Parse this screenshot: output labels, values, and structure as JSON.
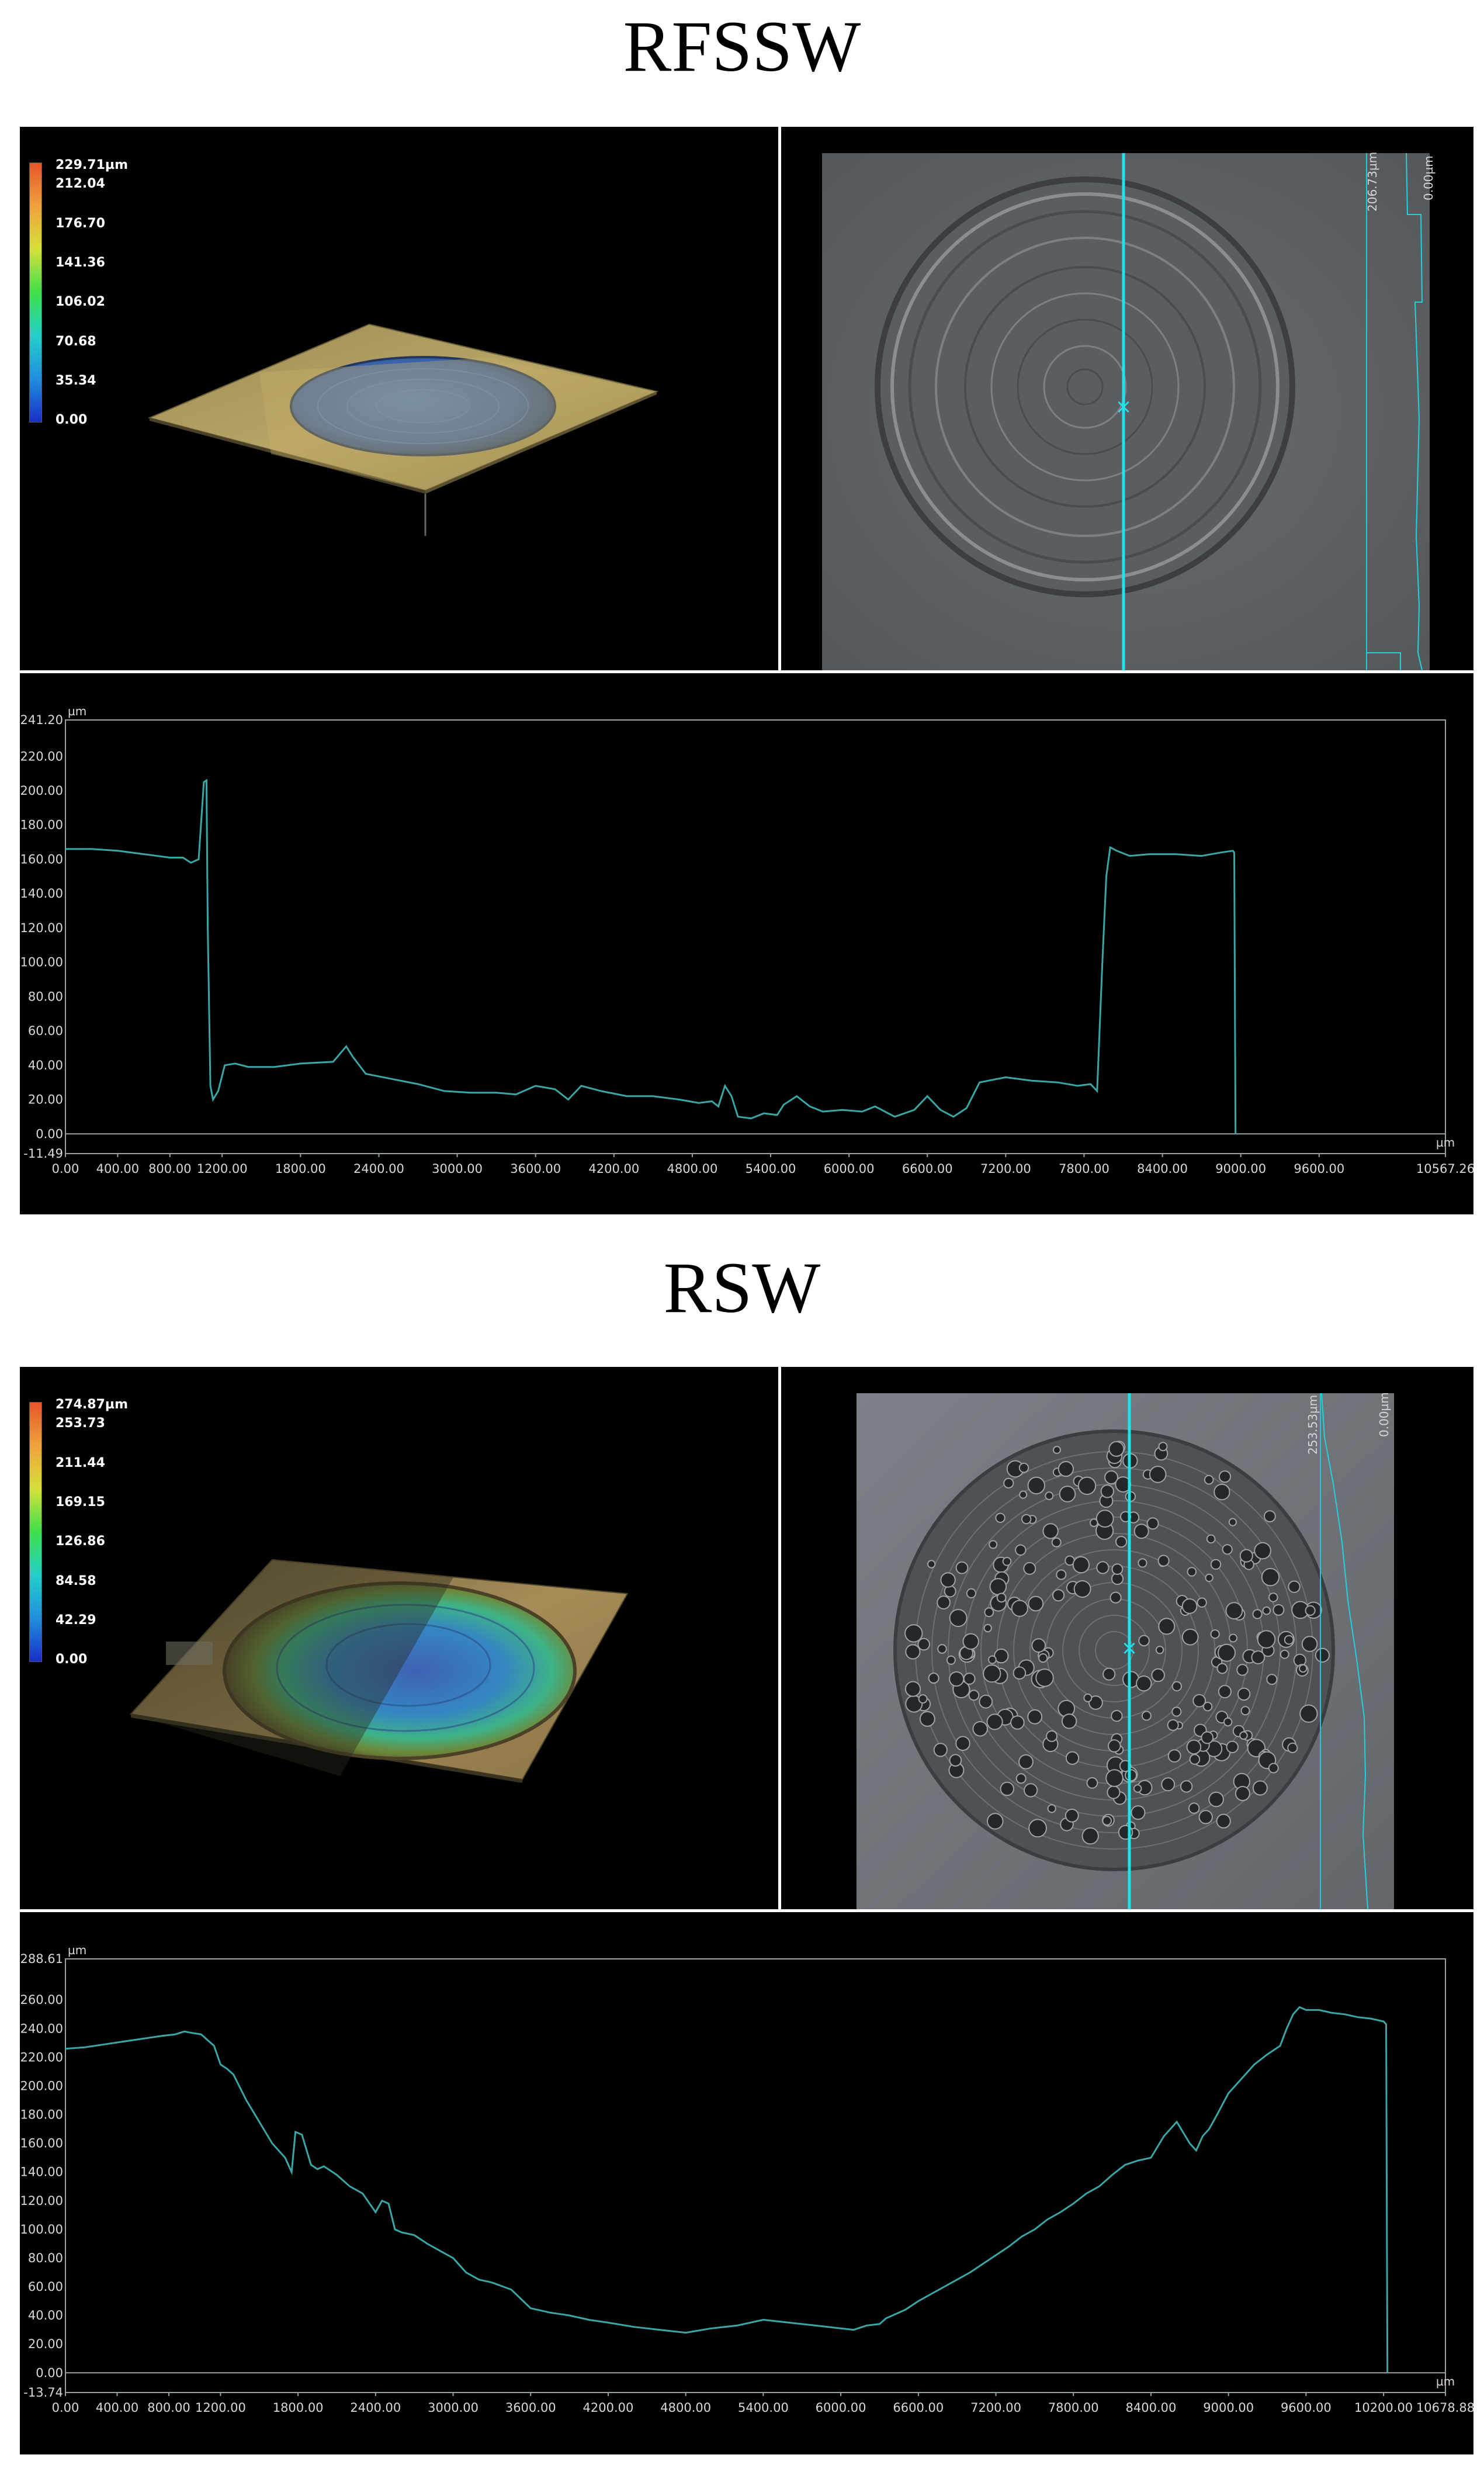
{
  "colors": {
    "profile_line": "#3aa6a6",
    "cursor_line": "#22e0ec",
    "frame": "#9aa3a3",
    "axis_text": "#d8d8d8",
    "legend_gradient": [
      "#1a2ec8",
      "#1f8fe0",
      "#22d0c8",
      "#3ee04a",
      "#d6e03a",
      "#f0a23a",
      "#e8552a"
    ]
  },
  "sections": [
    {
      "title": "RFSSW",
      "legend": {
        "max": "229.71µm",
        "values": [
          "212.04",
          "176.70",
          "141.36",
          "106.02",
          "70.68",
          "35.34",
          "0.00"
        ]
      },
      "image_scale": {
        "left": "206.73µm",
        "right": "0.00µm"
      },
      "chart_data": {
        "type": "line",
        "unit": "µm",
        "xlim": [
          0,
          10567.26
        ],
        "ylim": [
          -11.49,
          241.2
        ],
        "x_ticks": [
          "0.00",
          "400.00",
          "800.00",
          "1200.00",
          "1800.00",
          "2400.00",
          "3000.00",
          "3600.00",
          "4200.00",
          "4800.00",
          "5400.00",
          "6000.00",
          "6600.00",
          "7200.00",
          "7800.00",
          "8400.00",
          "9000.00",
          "9600.00",
          "10567.26"
        ],
        "x_tick_values": [
          0,
          400,
          800,
          1200,
          1800,
          2400,
          3000,
          3600,
          4200,
          4800,
          5400,
          6000,
          6600,
          7200,
          7800,
          8400,
          9000,
          9600,
          10567.26
        ],
        "y_ticks": [
          "241.20",
          "220.00",
          "200.00",
          "180.00",
          "160.00",
          "140.00",
          "120.00",
          "100.00",
          "80.00",
          "60.00",
          "40.00",
          "20.00",
          "0.00",
          "-11.49"
        ],
        "y_tick_values": [
          241.2,
          220,
          200,
          180,
          160,
          140,
          120,
          100,
          80,
          60,
          40,
          20,
          0,
          -11.49
        ],
        "series": [
          {
            "x": [
              0,
              200,
              400,
              600,
              800,
              900,
              960,
              1020,
              1060,
              1080,
              1090,
              1110,
              1130,
              1170,
              1220,
              1300,
              1400,
              1600,
              1800,
              2050,
              2150,
              2200,
              2300,
              2500,
              2700,
              2900,
              3100,
              3300,
              3450,
              3600,
              3750,
              3850,
              3950,
              4100,
              4300,
              4500,
              4700,
              4850,
              4950,
              5000,
              5050,
              5100,
              5150,
              5250,
              5350,
              5450,
              5500,
              5600,
              5700,
              5800,
              5950,
              6100,
              6200,
              6350,
              6500,
              6600,
              6700,
              6800,
              6900,
              7000,
              7200,
              7400,
              7600,
              7750,
              7850,
              7900,
              7940,
              7970,
              8000,
              8050,
              8150,
              8300,
              8500,
              8700,
              8850,
              8940,
              8950,
              8960
            ],
            "y": [
              166,
              166,
              165,
              163,
              161,
              161,
              158,
              160,
              205,
              206,
              120,
              28,
              20,
              25,
              40,
              41,
              39,
              39,
              41,
              42,
              51,
              45,
              35,
              32,
              29,
              25,
              24,
              24,
              23,
              28,
              26,
              20,
              28,
              25,
              22,
              22,
              20,
              18,
              19,
              16,
              28,
              22,
              10,
              9,
              12,
              11,
              17,
              22,
              16,
              13,
              14,
              13,
              16,
              10,
              14,
              22,
              14,
              10,
              15,
              30,
              33,
              31,
              30,
              28,
              29,
              25,
              100,
              150,
              167,
              165,
              162,
              163,
              163,
              162,
              164,
              165,
              164,
              0
            ]
          }
        ]
      }
    },
    {
      "title": "RSW",
      "legend": {
        "max": "274.87µm",
        "values": [
          "253.73",
          "211.44",
          "169.15",
          "126.86",
          "84.58",
          "42.29",
          "0.00"
        ]
      },
      "image_scale": {
        "left": "253.53µm",
        "right": "0.00µm"
      },
      "chart_data": {
        "type": "line",
        "unit": "µm",
        "xlim": [
          0,
          10678.88
        ],
        "ylim": [
          -13.74,
          288.61
        ],
        "x_ticks": [
          "0.00",
          "400.00",
          "800.00",
          "1200.00",
          "1800.00",
          "2400.00",
          "3000.00",
          "3600.00",
          "4200.00",
          "4800.00",
          "5400.00",
          "6000.00",
          "6600.00",
          "7200.00",
          "7800.00",
          "8400.00",
          "9000.00",
          "9600.00",
          "10200.00",
          "10678.88"
        ],
        "x_tick_values": [
          0,
          400,
          800,
          1200,
          1800,
          2400,
          3000,
          3600,
          4200,
          4800,
          5400,
          6000,
          6600,
          7200,
          7800,
          8400,
          9000,
          9600,
          10200,
          10678.88
        ],
        "y_ticks": [
          "288.61",
          "260.00",
          "240.00",
          "220.00",
          "200.00",
          "180.00",
          "160.00",
          "140.00",
          "120.00",
          "100.00",
          "80.00",
          "60.00",
          "40.00",
          "20.00",
          "0.00",
          "-13.74"
        ],
        "y_tick_values": [
          288.61,
          260,
          240,
          220,
          200,
          180,
          160,
          140,
          120,
          100,
          80,
          60,
          40,
          20,
          0,
          -13.74
        ],
        "series": [
          {
            "x": [
              0,
              150,
              300,
              450,
              600,
              750,
              850,
              920,
              980,
              1050,
              1150,
              1200,
              1250,
              1300,
              1400,
              1500,
              1600,
              1700,
              1750,
              1780,
              1830,
              1900,
              1950,
              2000,
              2100,
              2200,
              2300,
              2400,
              2450,
              2500,
              2550,
              2600,
              2700,
              2800,
              2900,
              3000,
              3100,
              3200,
              3300,
              3450,
              3600,
              3750,
              3900,
              4050,
              4200,
              4400,
              4600,
              4800,
              5000,
              5200,
              5400,
              5600,
              5800,
              6000,
              6100,
              6200,
              6300,
              6350,
              6400,
              6500,
              6600,
              6700,
              6800,
              6900,
              7000,
              7100,
              7200,
              7300,
              7400,
              7500,
              7600,
              7700,
              7800,
              7900,
              8000,
              8100,
              8200,
              8300,
              8400,
              8500,
              8600,
              8700,
              8750,
              8800,
              8850,
              8900,
              9000,
              9100,
              9200,
              9300,
              9400,
              9450,
              9500,
              9550,
              9600,
              9700,
              9800,
              9900,
              10000,
              10100,
              10200,
              10220,
              10230
            ],
            "y": [
              226,
              227,
              229,
              231,
              233,
              235,
              236,
              238,
              237,
              236,
              228,
              215,
              212,
              208,
              190,
              175,
              160,
              150,
              140,
              168,
              166,
              145,
              142,
              144,
              138,
              130,
              125,
              112,
              120,
              118,
              100,
              98,
              96,
              90,
              85,
              80,
              70,
              65,
              63,
              58,
              45,
              42,
              40,
              37,
              35,
              32,
              30,
              28,
              31,
              33,
              37,
              35,
              33,
              31,
              30,
              33,
              34,
              38,
              40,
              44,
              50,
              55,
              60,
              65,
              70,
              76,
              82,
              88,
              95,
              100,
              107,
              112,
              118,
              125,
              130,
              138,
              145,
              148,
              150,
              165,
              175,
              160,
              155,
              165,
              170,
              178,
              195,
              205,
              215,
              222,
              228,
              240,
              250,
              255,
              253,
              253,
              251,
              250,
              248,
              247,
              245,
              243,
              0
            ]
          }
        ]
      }
    }
  ]
}
